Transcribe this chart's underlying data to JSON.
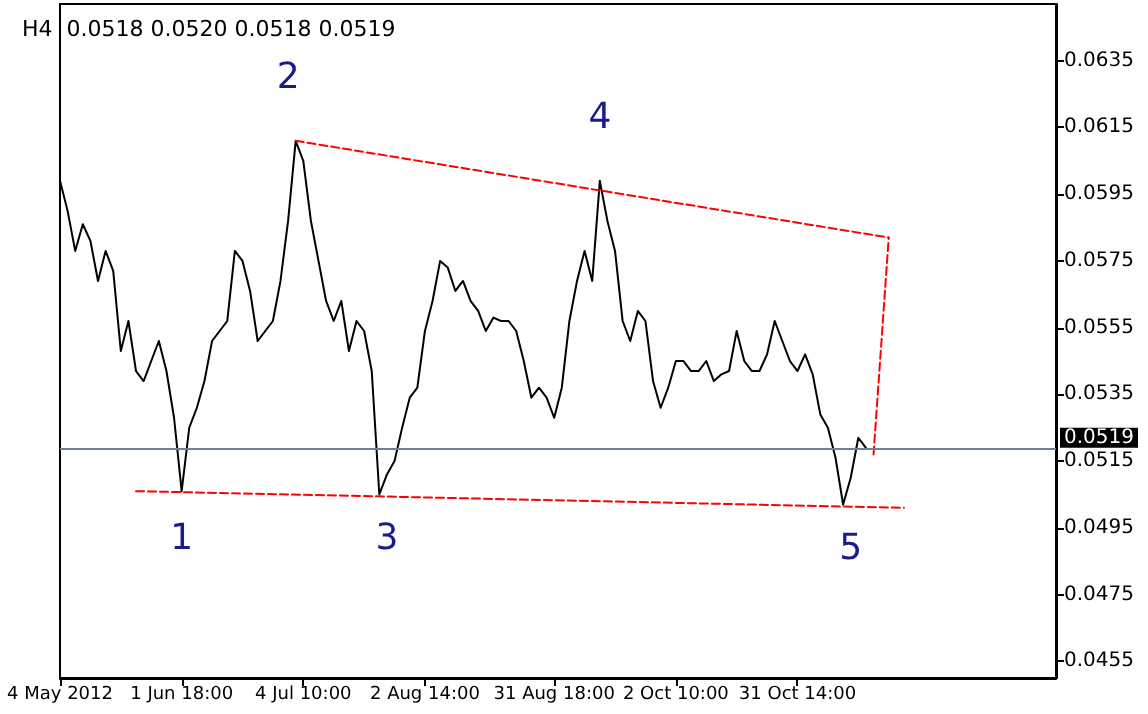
{
  "chart_data": {
    "type": "line",
    "title": "H4  0.0518 0.0520 0.0518 0.0519",
    "categories": [
      "4 May 2012",
      null,
      null,
      null,
      null,
      null,
      null,
      null,
      null,
      null,
      null,
      null,
      null,
      null,
      null,
      null,
      "1 Jun 18:00",
      null,
      null,
      null,
      null,
      null,
      null,
      null,
      null,
      null,
      null,
      null,
      null,
      null,
      null,
      null,
      "4 Jul 10:00",
      null,
      null,
      null,
      null,
      null,
      null,
      null,
      null,
      null,
      null,
      null,
      null,
      null,
      null,
      null,
      "2 Aug 14:00",
      null,
      null,
      null,
      null,
      null,
      null,
      null,
      null,
      null,
      null,
      null,
      null,
      null,
      null,
      null,
      null,
      "31 Aug 18:00",
      null,
      null,
      null,
      null,
      null,
      null,
      null,
      null,
      null,
      null,
      null,
      null,
      null,
      null,
      null,
      "2 Oct 10:00",
      null,
      null,
      null,
      null,
      null,
      null,
      null,
      null,
      null,
      null,
      null,
      null,
      null,
      null,
      null,
      "31 Oct 14:00",
      null,
      null,
      null,
      null,
      null,
      null,
      null,
      null,
      null,
      null,
      null,
      null,
      null,
      null,
      null,
      null,
      null,
      null,
      null,
      null,
      null,
      null,
      null,
      null,
      null,
      null,
      null,
      null,
      null,
      null,
      null,
      null,
      null,
      null
    ],
    "series": [
      {
        "color": "#000000",
        "line_style": "solid",
        "values": [
          0.0599,
          0.059,
          0.0578,
          0.0586,
          0.0581,
          0.0569,
          0.0578,
          0.0572,
          0.0548,
          0.0557,
          0.0542,
          0.0539,
          0.0545,
          0.0551,
          0.0542,
          0.0528,
          0.0506,
          0.0525,
          0.0531,
          0.0539,
          0.0551,
          0.0554,
          0.0557,
          0.0578,
          0.0575,
          0.0566,
          0.0551,
          0.0554,
          0.0557,
          0.0569,
          0.0587,
          0.0611,
          0.0605,
          0.0587,
          0.0575,
          0.0563,
          0.0557,
          0.0563,
          0.0548,
          0.0557,
          0.0554,
          0.0542,
          0.0505,
          0.0511,
          0.0515,
          0.0525,
          0.0534,
          0.0537,
          0.0554,
          0.0563,
          0.0575,
          0.0573,
          0.0566,
          0.0569,
          0.0563,
          0.056,
          0.0554,
          0.0558,
          0.0557,
          0.0557,
          0.0554,
          0.0545,
          0.0534,
          0.0537,
          0.0534,
          0.0528,
          0.0537,
          0.0557,
          0.0569,
          0.0578,
          0.0569,
          0.0599,
          0.0587,
          0.0578,
          0.0557,
          0.0551,
          0.056,
          0.0557,
          0.0539,
          0.0531,
          0.0537,
          0.0545,
          0.0545,
          0.0542,
          0.0542,
          0.0545,
          0.0539,
          0.0541,
          0.0542,
          0.0554,
          0.0545,
          0.0542,
          0.0542,
          0.0547,
          0.0557,
          0.0551,
          0.0545,
          0.0542,
          0.0547,
          0.0541,
          0.0529,
          0.0525,
          0.0516,
          0.0502,
          0.051,
          0.0522,
          0.0519,
          null,
          null,
          null,
          null,
          null,
          null,
          null,
          null,
          null,
          null,
          null,
          null,
          null,
          null,
          null,
          null,
          null,
          null,
          null,
          null,
          null,
          null,
          null,
          null,
          null
        ]
      },
      {
        "color": "#ff0000",
        "line_style": "dashed",
        "values": [
          null,
          null,
          null,
          null,
          null,
          null,
          null,
          null,
          null,
          null,
          0.0506,
          null,
          null,
          null,
          null,
          null,
          null,
          null,
          null,
          null,
          null,
          null,
          null,
          null,
          null,
          null,
          null,
          null,
          null,
          null,
          null,
          null,
          null,
          null,
          null,
          null,
          null,
          null,
          null,
          null,
          null,
          null,
          null,
          null,
          null,
          null,
          null,
          null,
          null,
          null,
          null,
          null,
          null,
          null,
          null,
          null,
          null,
          null,
          null,
          null,
          null,
          null,
          null,
          null,
          null,
          null,
          null,
          null,
          null,
          null,
          null,
          null,
          null,
          null,
          null,
          null,
          null,
          null,
          null,
          null,
          null,
          null,
          null,
          null,
          null,
          null,
          null,
          null,
          null,
          null,
          null,
          null,
          null,
          null,
          null,
          null,
          null,
          null,
          null,
          null,
          null,
          null,
          null,
          null,
          null,
          null,
          null,
          null,
          null,
          null,
          null,
          0.0501,
          null,
          null,
          null,
          null,
          null,
          null,
          null,
          null,
          null,
          null,
          null,
          null,
          null,
          null,
          null,
          null,
          null,
          null,
          null,
          null
        ]
      },
      {
        "color": "#ff0000",
        "line_style": "dashed",
        "values": [
          null,
          null,
          null,
          null,
          null,
          null,
          null,
          null,
          null,
          null,
          null,
          null,
          null,
          null,
          null,
          null,
          null,
          null,
          null,
          null,
          null,
          null,
          null,
          null,
          null,
          null,
          null,
          null,
          null,
          null,
          null,
          0.0611,
          null,
          null,
          null,
          null,
          null,
          null,
          null,
          null,
          null,
          null,
          null,
          null,
          null,
          null,
          null,
          null,
          null,
          null,
          null,
          null,
          null,
          null,
          null,
          null,
          null,
          null,
          null,
          null,
          null,
          null,
          null,
          null,
          null,
          null,
          null,
          null,
          null,
          null,
          null,
          null,
          null,
          null,
          null,
          null,
          null,
          null,
          null,
          null,
          null,
          null,
          null,
          null,
          null,
          null,
          null,
          null,
          null,
          null,
          null,
          null,
          null,
          null,
          null,
          null,
          null,
          null,
          null,
          null,
          null,
          null,
          null,
          null,
          null,
          null,
          null,
          null,
          null,
          0.0582,
          null,
          null,
          null,
          null,
          null,
          null,
          null,
          null,
          null,
          null,
          null,
          null,
          null,
          null,
          null,
          null,
          null,
          null,
          null,
          null,
          null,
          null
        ]
      },
      {
        "color": "#ff0000",
        "line_style": "dashed",
        "values": [
          null,
          null,
          null,
          null,
          null,
          null,
          null,
          null,
          null,
          null,
          null,
          null,
          null,
          null,
          null,
          null,
          null,
          null,
          null,
          null,
          null,
          null,
          null,
          null,
          null,
          null,
          null,
          null,
          null,
          null,
          null,
          null,
          null,
          null,
          null,
          null,
          null,
          null,
          null,
          null,
          null,
          null,
          null,
          null,
          null,
          null,
          null,
          null,
          null,
          null,
          null,
          null,
          null,
          null,
          null,
          null,
          null,
          null,
          null,
          null,
          null,
          null,
          null,
          null,
          null,
          null,
          null,
          null,
          null,
          null,
          null,
          null,
          null,
          null,
          null,
          null,
          null,
          null,
          null,
          null,
          null,
          null,
          null,
          null,
          null,
          null,
          null,
          null,
          null,
          null,
          null,
          null,
          null,
          null,
          null,
          null,
          null,
          null,
          null,
          null,
          null,
          null,
          null,
          null,
          null,
          null,
          null,
          0.0517,
          null,
          0.0582,
          null,
          null,
          null,
          null,
          null,
          null,
          null,
          null,
          null,
          null,
          null,
          null,
          null,
          null,
          null,
          null,
          null,
          null,
          null,
          null,
          null,
          null
        ]
      }
    ],
    "ylim": [
      0.045,
      0.0652
    ],
    "yticks": [
      0.0455,
      0.0475,
      0.0495,
      0.0515,
      0.0535,
      0.0555,
      0.0575,
      0.0595,
      0.0615,
      0.0635
    ],
    "ref_lines": [
      {
        "axis": "y",
        "value": 0.0519,
        "label": "0.0519",
        "color": "#708090"
      }
    ],
    "annotations": [
      "1",
      "2",
      "3",
      "4",
      "5"
    ],
    "grid": false,
    "marker": "none"
  }
}
